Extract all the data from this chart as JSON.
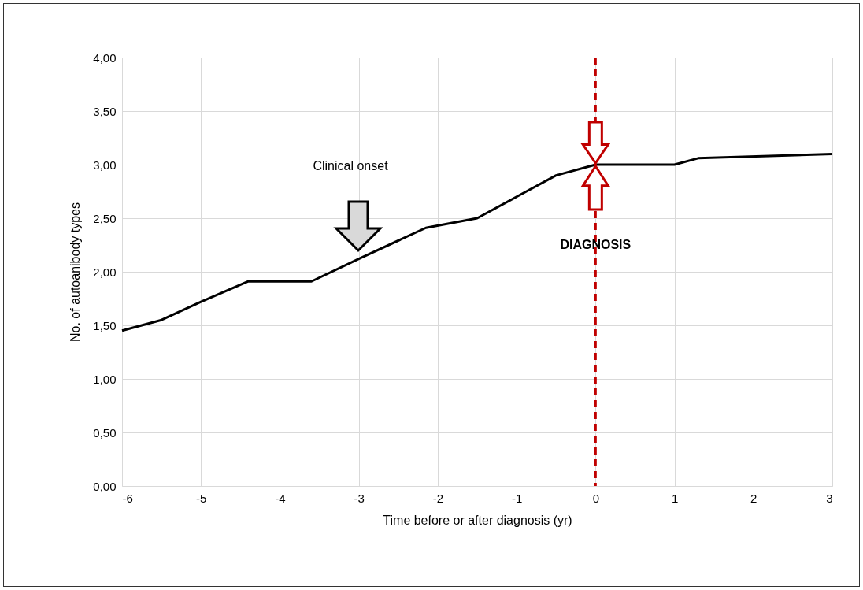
{
  "chart_data": {
    "type": "line",
    "xlabel": "Time before or after diagnosis (yr)",
    "ylabel": "No. of autoanibody  types",
    "x": [
      -6,
      -5.5,
      -5,
      -4.4,
      -3.6,
      -3,
      -2.15,
      -1.5,
      -1,
      -0.5,
      0,
      1,
      1.3,
      3
    ],
    "series": [
      {
        "color": "#000000",
        "values": [
          1.45,
          1.55,
          1.72,
          1.91,
          1.91,
          2.12,
          2.41,
          2.5,
          2.7,
          2.9,
          3.0,
          3.0,
          3.06,
          3.1
        ]
      }
    ],
    "xlim": [
      -6,
      3
    ],
    "xticks": [
      -6,
      -5,
      -4,
      -3,
      -2,
      -1,
      0,
      1,
      2,
      3
    ],
    "ylim": [
      0,
      4
    ],
    "yticks": [
      {
        "value": 0,
        "label": "0,00"
      },
      {
        "value": 0.5,
        "label": "0,50"
      },
      {
        "value": 1,
        "label": "1,00"
      },
      {
        "value": 1.5,
        "label": "1,50"
      },
      {
        "value": 2,
        "label": "2,00"
      },
      {
        "value": 2.5,
        "label": "2,50"
      },
      {
        "value": 3,
        "label": "3,00"
      },
      {
        "value": 3.5,
        "label": "3,50"
      },
      {
        "value": 4,
        "label": "4,00"
      }
    ],
    "grid": true,
    "marker": "none",
    "line_style": "solid",
    "ref_lines": [
      {
        "axis": "x",
        "value": 0,
        "label": "DIAGNOSIS",
        "color": "#c00000",
        "line_style": "dashed"
      }
    ],
    "annotations": [
      "Clinical onset"
    ]
  }
}
